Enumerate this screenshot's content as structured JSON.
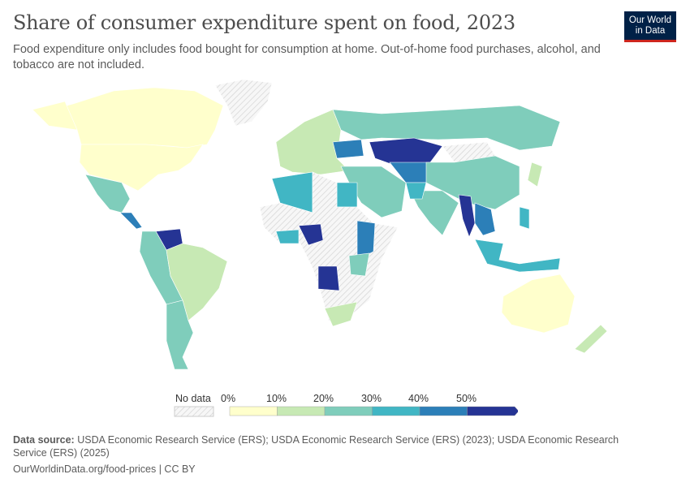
{
  "header": {
    "title": "Share of consumer expenditure spent on food, 2023",
    "subtitle": "Food expenditure only includes food bought for consumption at home. Out-of-home food purchases, alcohol, and tobacco are not included.",
    "logo_text": "Our World in Data"
  },
  "legend": {
    "no_data_label": "No data",
    "bins": [
      {
        "label": "0%",
        "color": "#ffffcc"
      },
      {
        "label": "10%",
        "color": "#c7e9b4"
      },
      {
        "label": "20%",
        "color": "#7fcdbb"
      },
      {
        "label": "30%",
        "color": "#41b6c4"
      },
      {
        "label": "40%",
        "color": "#2c7fb8"
      },
      {
        "label": "50%",
        "color": "#253494"
      }
    ]
  },
  "footer": {
    "source_label": "Data source:",
    "source_text": "USDA Economic Research Service (ERS); USDA Economic Research Service (ERS) (2023); USDA Economic Research Service (ERS) (2025)",
    "url_text": "OurWorldinData.org/food-prices | CC BY"
  }
}
